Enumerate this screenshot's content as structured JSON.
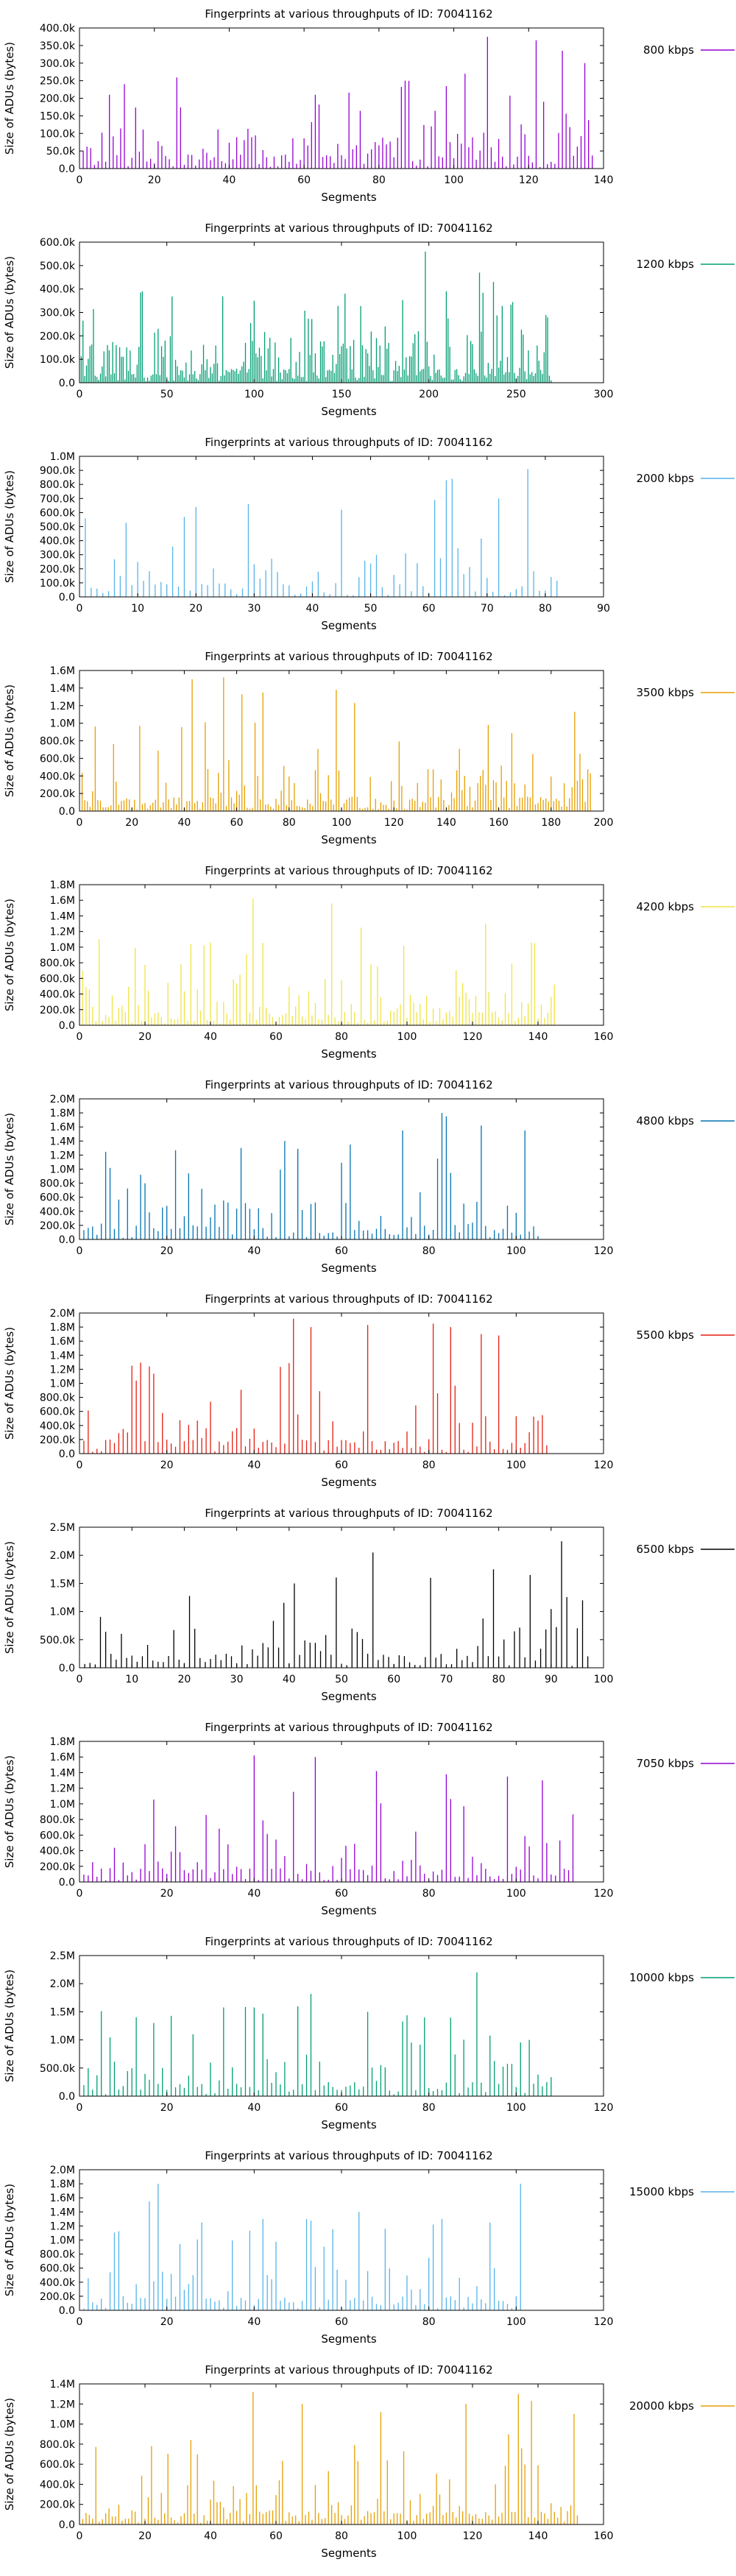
{
  "chart_data": [
    {
      "type": "bar",
      "title": "Fingerprints at various throughputs of ID: 70041162",
      "xlabel": "Segments",
      "ylabel": "Size of ADUs (bytes)",
      "xlim": [
        0,
        140
      ],
      "ylim": [
        0,
        400000
      ],
      "xticks": [
        "0",
        "20",
        "40",
        "60",
        "80",
        "100",
        "120",
        "140"
      ],
      "yticks": [
        "0.0",
        "50.0k",
        "100.0k",
        "150.0k",
        "200.0k",
        "250.0k",
        "300.0k",
        "350.0k",
        "400.0k"
      ],
      "legend": "800 kbps",
      "color": "#9400d3",
      "count": 137,
      "peaks": [
        [
          8,
          210000
        ],
        [
          12,
          240000
        ],
        [
          63,
          210000
        ],
        [
          94,
          120000
        ],
        [
          103,
          270000
        ],
        [
          109,
          375000
        ],
        [
          122,
          365000
        ],
        [
          124,
          190000
        ],
        [
          129,
          335000
        ],
        [
          135,
          300000
        ]
      ]
    },
    {
      "type": "bar",
      "title": "Fingerprints at various throughputs of ID: 70041162",
      "xlabel": "Segments",
      "ylabel": "Size of ADUs (bytes)",
      "xlim": [
        0,
        300
      ],
      "ylim": [
        0,
        600000
      ],
      "xticks": [
        "0",
        "50",
        "100",
        "150",
        "200",
        "250",
        "300"
      ],
      "yticks": [
        "0.0",
        "100.0k",
        "200.0k",
        "300.0k",
        "400.0k",
        "500.0k",
        "600.0k"
      ],
      "legend": "1200 kbps",
      "color": "#009e73",
      "count": 270,
      "peaks": [
        [
          36,
          390000
        ],
        [
          100,
          350000
        ],
        [
          152,
          380000
        ],
        [
          175,
          240000
        ],
        [
          198,
          560000
        ],
        [
          210,
          390000
        ],
        [
          229,
          470000
        ],
        [
          237,
          430000
        ]
      ]
    },
    {
      "type": "bar",
      "title": "Fingerprints at various throughputs of ID: 70041162",
      "xlabel": "Segments",
      "ylabel": "Size of ADUs (bytes)",
      "xlim": [
        0,
        90
      ],
      "ylim": [
        0,
        1000000
      ],
      "xticks": [
        "0",
        "10",
        "20",
        "30",
        "40",
        "50",
        "60",
        "70",
        "80",
        "90"
      ],
      "yticks": [
        "0.0",
        "100.0k",
        "200.0k",
        "300.0k",
        "400.0k",
        "500.0k",
        "600.0k",
        "700.0k",
        "800.0k",
        "900.0k",
        "1.0M"
      ],
      "legend": "2000 kbps",
      "color": "#56b4e9",
      "count": 82,
      "peaks": [
        [
          20,
          640000
        ],
        [
          29,
          660000
        ],
        [
          45,
          620000
        ],
        [
          61,
          690000
        ],
        [
          63,
          830000
        ],
        [
          64,
          840000
        ],
        [
          72,
          700000
        ],
        [
          77,
          910000
        ]
      ]
    },
    {
      "type": "bar",
      "title": "Fingerprints at various throughputs of ID: 70041162",
      "xlabel": "Segments",
      "ylabel": "Size of ADUs (bytes)",
      "xlim": [
        0,
        200
      ],
      "ylim": [
        0,
        1600000
      ],
      "xticks": [
        "0",
        "20",
        "40",
        "60",
        "80",
        "100",
        "120",
        "140",
        "160",
        "180",
        "200"
      ],
      "yticks": [
        "0.0",
        "200.0k",
        "400.0k",
        "600.0k",
        "800.0k",
        "1.0M",
        "1.2M",
        "1.4M",
        "1.6M"
      ],
      "legend": "3500 kbps",
      "color": "#e69f00",
      "count": 195,
      "peaks": [
        [
          43,
          1500000
        ],
        [
          55,
          1520000
        ],
        [
          62,
          1330000
        ],
        [
          70,
          1350000
        ],
        [
          98,
          1380000
        ],
        [
          105,
          1230000
        ],
        [
          156,
          980000
        ],
        [
          189,
          1130000
        ]
      ]
    },
    {
      "type": "bar",
      "title": "Fingerprints at various throughputs of ID: 70041162",
      "xlabel": "Segments",
      "ylabel": "Size of ADUs (bytes)",
      "xlim": [
        0,
        160
      ],
      "ylim": [
        0,
        1800000
      ],
      "xticks": [
        "0",
        "20",
        "40",
        "60",
        "80",
        "100",
        "120",
        "140",
        "160"
      ],
      "yticks": [
        "0.0",
        "200.0k",
        "400.0k",
        "600.0k",
        "800.0k",
        "1.0M",
        "1.2M",
        "1.4M",
        "1.6M",
        "1.8M"
      ],
      "legend": "4200 kbps",
      "color": "#f0e442",
      "count": 145,
      "peaks": [
        [
          53,
          1620000
        ],
        [
          77,
          1560000
        ],
        [
          86,
          1250000
        ],
        [
          124,
          1300000
        ],
        [
          139,
          1050000
        ]
      ]
    },
    {
      "type": "bar",
      "title": "Fingerprints at various throughputs of ID: 70041162",
      "xlabel": "Segments",
      "ylabel": "Size of ADUs (bytes)",
      "xlim": [
        0,
        120
      ],
      "ylim": [
        0,
        2000000
      ],
      "xticks": [
        "0",
        "20",
        "40",
        "60",
        "80",
        "100",
        "120"
      ],
      "yticks": [
        "0.0",
        "200.0k",
        "400.0k",
        "600.0k",
        "800.0k",
        "1.0M",
        "1.2M",
        "1.4M",
        "1.6M",
        "1.8M",
        "2.0M"
      ],
      "legend": "4800 kbps",
      "color": "#0072b2",
      "count": 105,
      "peaks": [
        [
          37,
          1300000
        ],
        [
          47,
          1400000
        ],
        [
          62,
          1350000
        ],
        [
          74,
          1550000
        ],
        [
          83,
          1800000
        ],
        [
          84,
          1750000
        ],
        [
          92,
          1620000
        ],
        [
          102,
          1550000
        ]
      ]
    },
    {
      "type": "bar",
      "title": "Fingerprints at various throughputs of ID: 70041162",
      "xlabel": "Segments",
      "ylabel": "Size of ADUs (bytes)",
      "xlim": [
        0,
        120
      ],
      "ylim": [
        0,
        2000000
      ],
      "xticks": [
        "0",
        "20",
        "40",
        "60",
        "80",
        "100",
        "120"
      ],
      "yticks": [
        "0.0",
        "200.0k",
        "400.0k",
        "600.0k",
        "800.0k",
        "1.0M",
        "1.2M",
        "1.4M",
        "1.6M",
        "1.8M",
        "2.0M"
      ],
      "legend": "5500 kbps",
      "color": "#e51e10",
      "count": 107,
      "peaks": [
        [
          49,
          1920000
        ],
        [
          53,
          1800000
        ],
        [
          66,
          1830000
        ],
        [
          81,
          1850000
        ],
        [
          85,
          1800000
        ],
        [
          92,
          1700000
        ],
        [
          96,
          1680000
        ]
      ]
    },
    {
      "type": "bar",
      "title": "Fingerprints at various throughputs of ID: 70041162",
      "xlabel": "Segments",
      "ylabel": "Size of ADUs (bytes)",
      "xlim": [
        0,
        100
      ],
      "ylim": [
        0,
        2500000
      ],
      "xticks": [
        "0",
        "10",
        "20",
        "30",
        "40",
        "50",
        "60",
        "70",
        "80",
        "90",
        "100"
      ],
      "yticks": [
        "0.0",
        "500.0k",
        "1.0M",
        "1.5M",
        "2.0M",
        "2.5M"
      ],
      "legend": "6500 kbps",
      "color": "#000000",
      "count": 97,
      "peaks": [
        [
          41,
          1500000
        ],
        [
          56,
          2050000
        ],
        [
          67,
          1600000
        ],
        [
          79,
          1750000
        ],
        [
          86,
          1650000
        ],
        [
          92,
          2250000
        ],
        [
          96,
          1200000
        ]
      ]
    },
    {
      "type": "bar",
      "title": "Fingerprints at various throughputs of ID: 70041162",
      "xlabel": "Segments",
      "ylabel": "Size of ADUs (bytes)",
      "xlim": [
        0,
        120
      ],
      "ylim": [
        0,
        1800000
      ],
      "xticks": [
        "0",
        "20",
        "40",
        "60",
        "80",
        "100",
        "120"
      ],
      "yticks": [
        "0.0",
        "200.0k",
        "400.0k",
        "600.0k",
        "800.0k",
        "1.0M",
        "1.2M",
        "1.4M",
        "1.6M",
        "1.8M"
      ],
      "legend": "7050 kbps",
      "color": "#9400d3",
      "count": 113,
      "peaks": [
        [
          40,
          1620000
        ],
        [
          54,
          1600000
        ],
        [
          68,
          1420000
        ],
        [
          84,
          1380000
        ],
        [
          98,
          1350000
        ],
        [
          106,
          1300000
        ]
      ]
    },
    {
      "type": "bar",
      "title": "Fingerprints at various throughputs of ID: 70041162",
      "xlabel": "Segments",
      "ylabel": "Size of ADUs (bytes)",
      "xlim": [
        0,
        120
      ],
      "ylim": [
        0,
        2500000
      ],
      "xticks": [
        "0",
        "20",
        "40",
        "60",
        "80",
        "100",
        "120"
      ],
      "yticks": [
        "0.0",
        "500.0k",
        "1.0M",
        "1.5M",
        "2.0M",
        "2.5M"
      ],
      "legend": "10000 kbps",
      "color": "#009e73",
      "count": 108,
      "peaks": [
        [
          17,
          1300000
        ],
        [
          26,
          1100000
        ],
        [
          53,
          1820000
        ],
        [
          66,
          1500000
        ],
        [
          79,
          1400000
        ],
        [
          91,
          2200000
        ],
        [
          103,
          1000000
        ]
      ]
    },
    {
      "type": "bar",
      "title": "Fingerprints at various throughputs of ID: 70041162",
      "xlabel": "Segments",
      "ylabel": "Size of ADUs (bytes)",
      "xlim": [
        0,
        120
      ],
      "ylim": [
        0,
        2000000
      ],
      "xticks": [
        "0",
        "20",
        "40",
        "60",
        "80",
        "100",
        "120"
      ],
      "yticks": [
        "0.0",
        "200.0k",
        "400.0k",
        "600.0k",
        "800.0k",
        "1.0M",
        "1.2M",
        "1.4M",
        "1.6M",
        "1.8M",
        "2.0M"
      ],
      "legend": "15000 kbps",
      "color": "#56b4e9",
      "count": 101,
      "peaks": [
        [
          16,
          1550000
        ],
        [
          18,
          1800000
        ],
        [
          28,
          1250000
        ],
        [
          42,
          1300000
        ],
        [
          52,
          1300000
        ],
        [
          64,
          1400000
        ],
        [
          83,
          1300000
        ],
        [
          94,
          1250000
        ],
        [
          101,
          1800000
        ]
      ]
    },
    {
      "type": "bar",
      "title": "Fingerprints at various throughputs of ID: 70041162",
      "xlabel": "Segments",
      "ylabel": "Size of ADUs (bytes)",
      "xlim": [
        0,
        160
      ],
      "ylim": [
        0,
        1400000
      ],
      "xticks": [
        "0",
        "20",
        "40",
        "60",
        "80",
        "100",
        "120",
        "140",
        "160"
      ],
      "yticks": [
        "0.0",
        "200.0k",
        "400.0k",
        "600.0k",
        "800.0k",
        "1.0M",
        "1.2M",
        "1.4M"
      ],
      "legend": "20000 kbps",
      "color": "#e69f00",
      "count": 152,
      "peaks": [
        [
          53,
          1320000
        ],
        [
          68,
          1200000
        ],
        [
          92,
          1120000
        ],
        [
          118,
          1200000
        ],
        [
          134,
          1300000
        ],
        [
          138,
          1230000
        ],
        [
          151,
          1100000
        ]
      ]
    }
  ]
}
